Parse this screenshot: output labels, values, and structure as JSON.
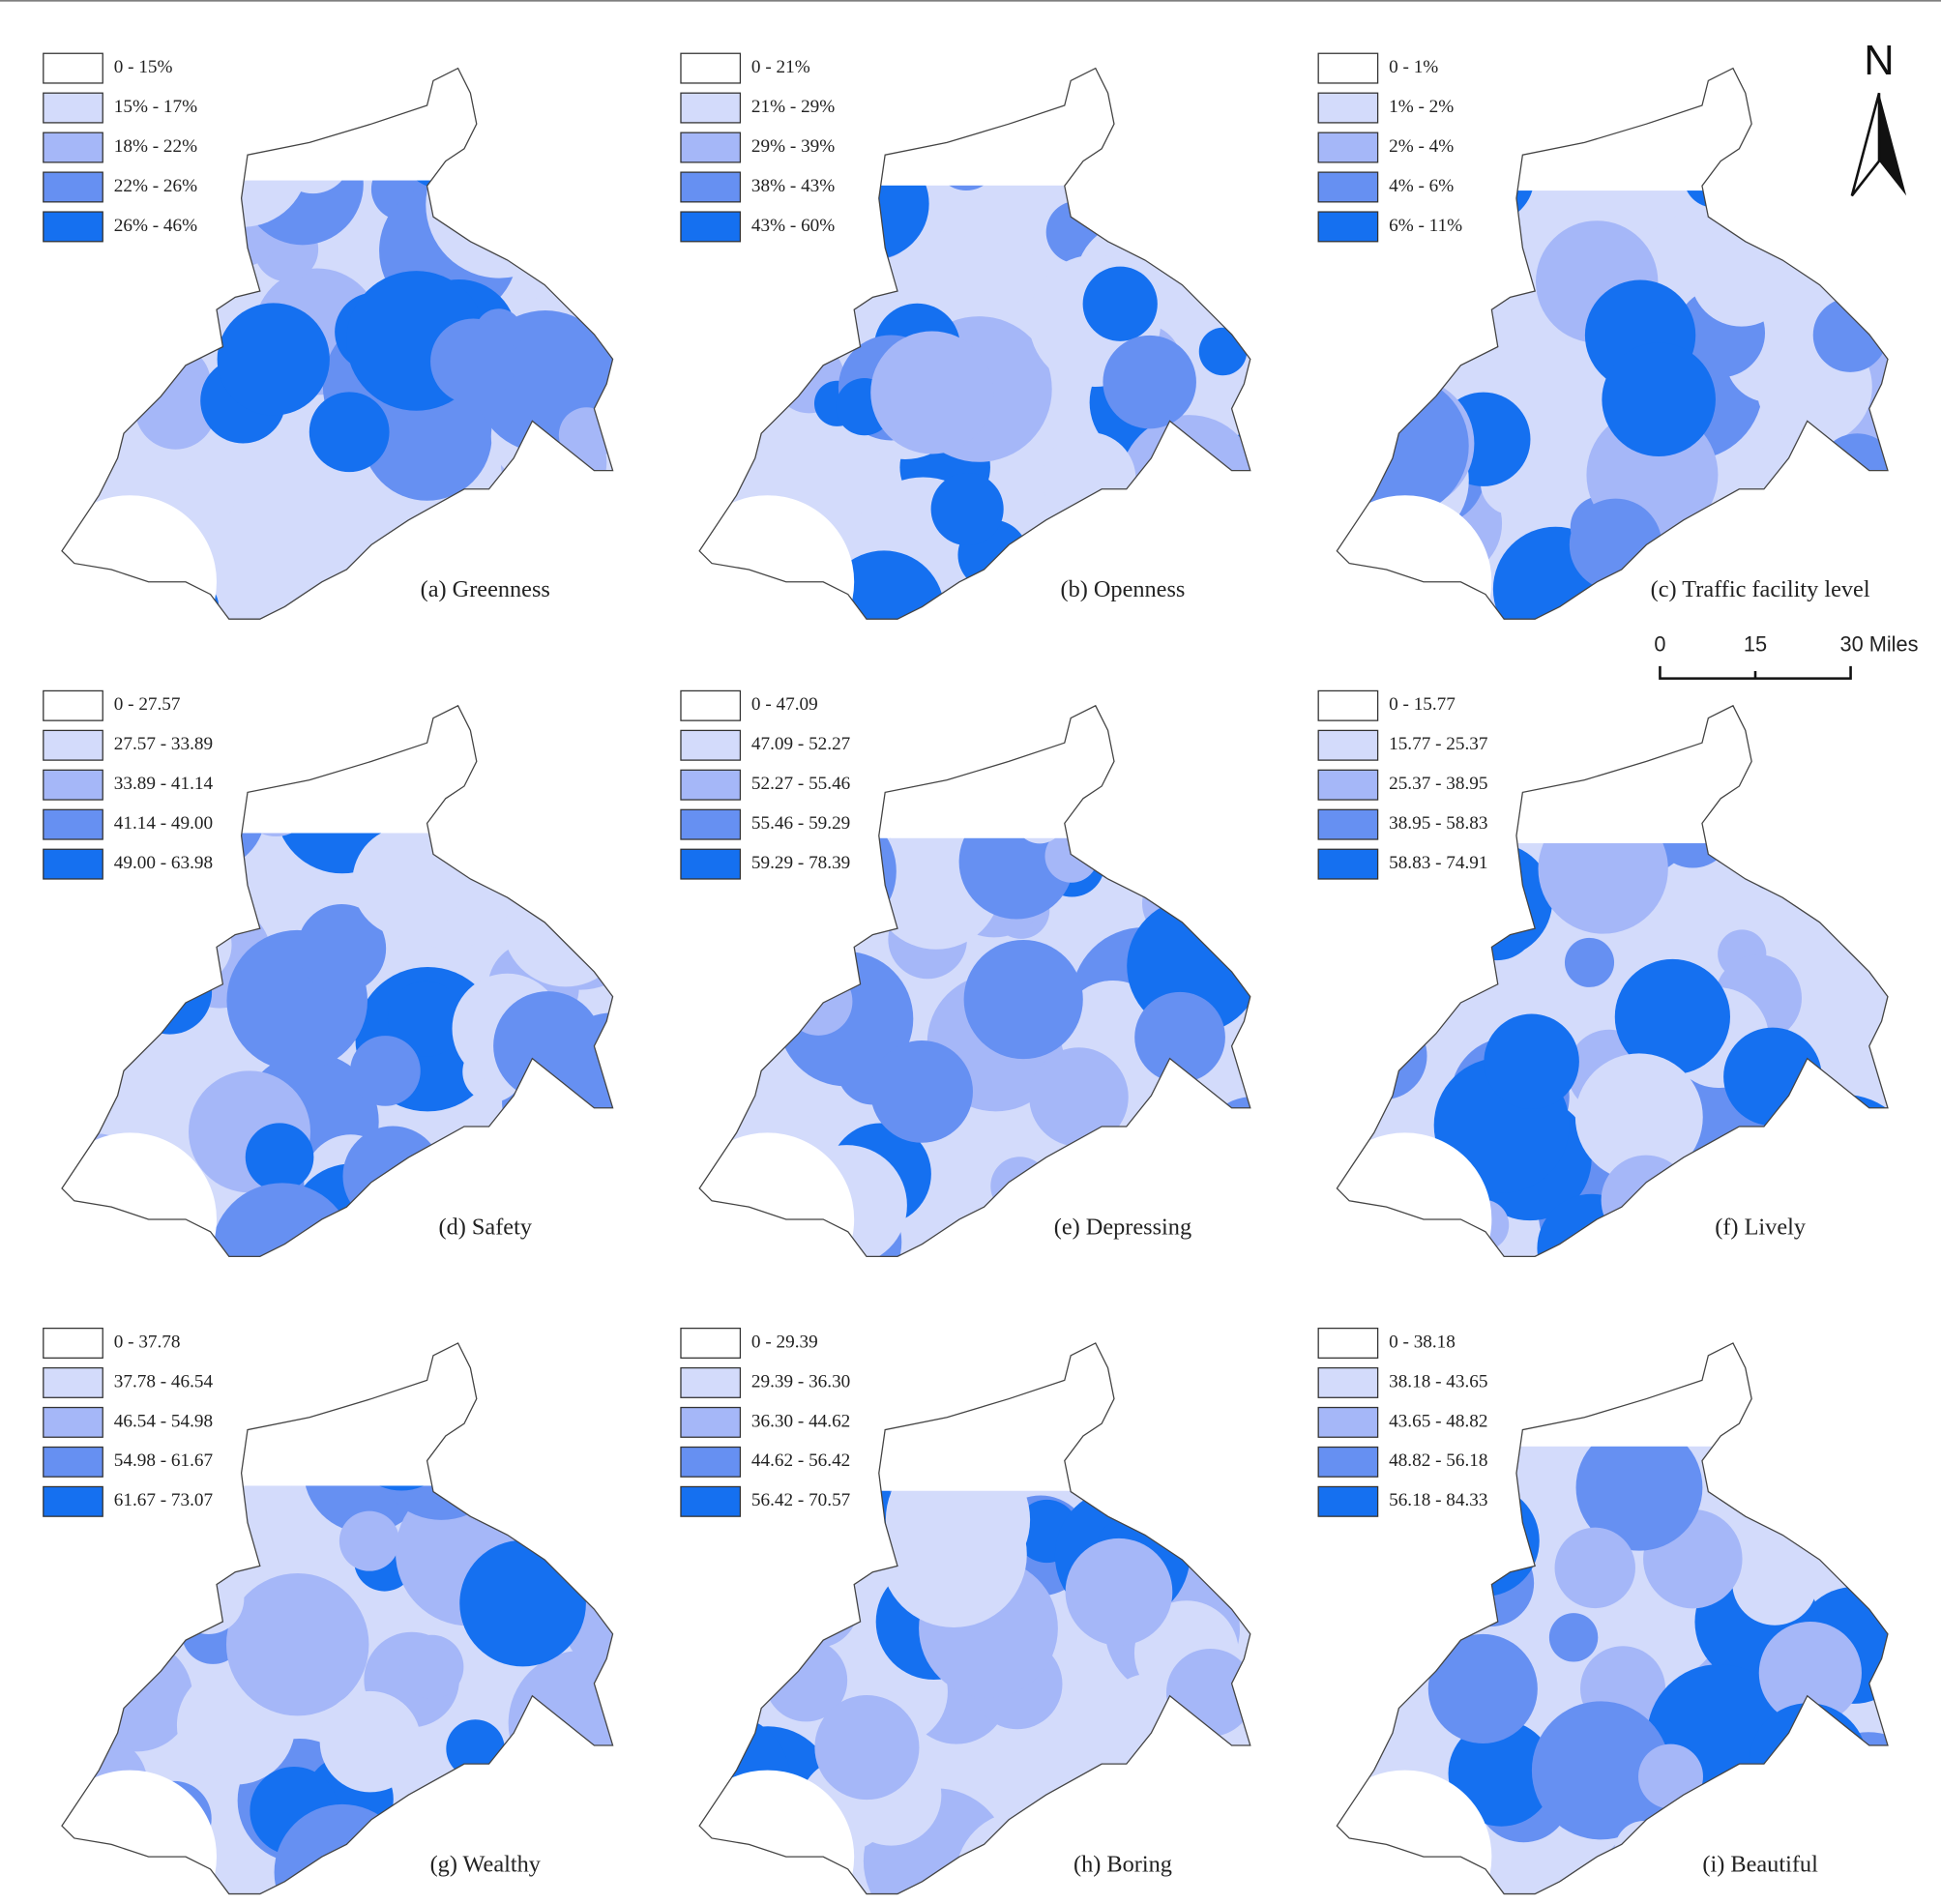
{
  "figure": {
    "panels": [
      {
        "title": "(a) Greenness",
        "legend": [
          "0 - 15%",
          "15% - 17%",
          "18% - 22%",
          "22% - 26%",
          "26% - 46%"
        ]
      },
      {
        "title": "(b) Openness",
        "legend": [
          "0 - 21%",
          "21% - 29%",
          "29% - 39%",
          "38% - 43%",
          "43% - 60%"
        ]
      },
      {
        "title": "(c) Traffic facility level",
        "legend": [
          "0 - 1%",
          "1% - 2%",
          "2% - 4%",
          "4% - 6%",
          "6% - 11%"
        ]
      },
      {
        "title": "(d) Safety",
        "legend": [
          "0 - 27.57",
          "27.57 - 33.89",
          "33.89 - 41.14",
          "41.14 - 49.00",
          "49.00 - 63.98"
        ]
      },
      {
        "title": "(e) Depressing",
        "legend": [
          "0 - 47.09",
          "47.09 - 52.27",
          "52.27 - 55.46",
          "55.46 - 59.29",
          "59.29 - 78.39"
        ]
      },
      {
        "title": "(f) Lively",
        "legend": [
          "0 - 15.77",
          "15.77 - 25.37",
          "25.37 - 38.95",
          "38.95 - 58.83",
          "58.83 - 74.91"
        ]
      },
      {
        "title": "(g) Wealthy",
        "legend": [
          "0 - 37.78",
          "37.78 - 46.54",
          "46.54 - 54.98",
          "54.98 - 61.67",
          "61.67 - 73.07"
        ]
      },
      {
        "title": "(h) Boring",
        "legend": [
          "0 - 29.39",
          "29.39 - 36.30",
          "36.30 - 44.62",
          "44.62 - 56.42",
          "56.42 - 70.57"
        ]
      },
      {
        "title": "(i) Beautiful",
        "legend": [
          "0 - 38.18",
          "38.18 - 43.65",
          "43.65 - 48.82",
          "48.82 - 56.18",
          "56.18 - 84.33"
        ]
      }
    ],
    "legend_colors": [
      "#ffffff",
      "#d3dbfb",
      "#a5b7f8",
      "#6690f2",
      "#1570f0"
    ],
    "north": "N",
    "scale_bar": [
      "0",
      "15",
      "30 Miles"
    ]
  }
}
